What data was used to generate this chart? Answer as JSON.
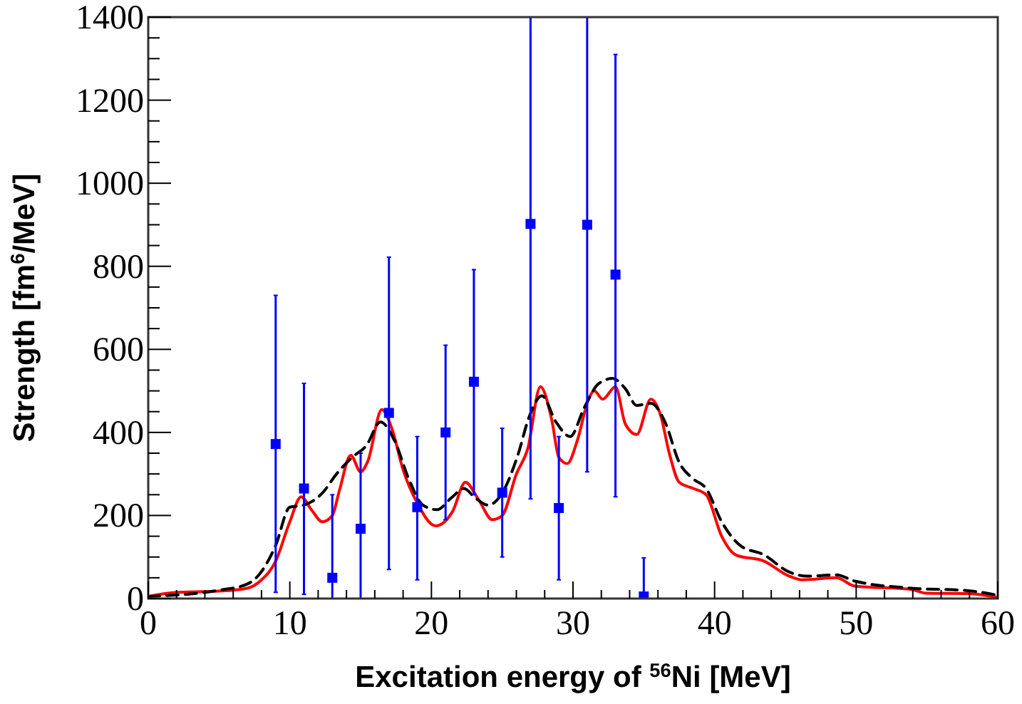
{
  "chart_data": {
    "type": "line",
    "xlabel": "Excitation energy of $^{56}$Ni [MeV]",
    "ylabel": "Strength [fm$^{6}$/MeV]",
    "xlim": [
      0,
      60
    ],
    "ylim": [
      0,
      1400
    ],
    "xticks": [
      0,
      {
        "value": 2,
        "label": null
      },
      {
        "value": 4,
        "label": null
      },
      {
        "value": 6,
        "label": null
      },
      {
        "value": 8,
        "label": null
      },
      10,
      {
        "value": 12,
        "label": null
      },
      {
        "value": 14,
        "label": null
      },
      {
        "value": 16,
        "label": null
      },
      {
        "value": 18,
        "label": null
      },
      20,
      {
        "value": 22,
        "label": null
      },
      {
        "value": 24,
        "label": null
      },
      {
        "value": 26,
        "label": null
      },
      {
        "value": 28,
        "label": null
      },
      30,
      {
        "value": 32,
        "label": null
      },
      {
        "value": 34,
        "label": null
      },
      {
        "value": 36,
        "label": null
      },
      {
        "value": 38,
        "label": null
      },
      40,
      {
        "value": 42,
        "label": null
      },
      {
        "value": 44,
        "label": null
      },
      {
        "value": 46,
        "label": null
      },
      {
        "value": 48,
        "label": null
      },
      50,
      {
        "value": 52,
        "label": null
      },
      {
        "value": 54,
        "label": null
      },
      {
        "value": 56,
        "label": null
      },
      {
        "value": 58,
        "label": null
      },
      60
    ],
    "yticks": [
      0,
      {
        "value": 50,
        "label": null
      },
      {
        "value": 100,
        "label": null
      },
      {
        "value": 150,
        "label": null
      },
      200,
      {
        "value": 250,
        "label": null
      },
      {
        "value": 300,
        "label": null
      },
      {
        "value": 350,
        "label": null
      },
      400,
      {
        "value": 450,
        "label": null
      },
      {
        "value": 500,
        "label": null
      },
      {
        "value": 550,
        "label": null
      },
      600,
      {
        "value": 650,
        "label": null
      },
      {
        "value": 700,
        "label": null
      },
      {
        "value": 750,
        "label": null
      },
      800,
      {
        "value": 850,
        "label": null
      },
      {
        "value": 900,
        "label": null
      },
      {
        "value": 950,
        "label": null
      },
      1000,
      {
        "value": 1050,
        "label": null
      },
      {
        "value": 1100,
        "label": null
      },
      {
        "value": 1150,
        "label": null
      },
      1200,
      {
        "value": 1250,
        "label": null
      },
      {
        "value": 1300,
        "label": null
      },
      {
        "value": 1350,
        "label": null
      },
      1400
    ],
    "grid": false,
    "series": [
      {
        "color": "#ff0000",
        "line_style": "solid",
        "marker": "none",
        "x": [
          0,
          2,
          5,
          7,
          8,
          9,
          10,
          10.8,
          11.5,
          12.3,
          13,
          13.5,
          14.3,
          15,
          15.5,
          16.5,
          17.2,
          18,
          19,
          20.3,
          21.5,
          22.4,
          23.3,
          24.3,
          25,
          26,
          26.8,
          27.7,
          28.5,
          29,
          29.6,
          30.3,
          31.1,
          31.5,
          32.1,
          33,
          33.7,
          34.5,
          35.5,
          36.2,
          36.8,
          37.5,
          38.5,
          39.4,
          40.5,
          41.5,
          43.5,
          45.2,
          46.2,
          48.6,
          49.9,
          53.9,
          54.9,
          57.9,
          60
        ],
        "values": [
          5,
          15,
          18,
          25,
          45,
          90,
          185,
          245,
          215,
          185,
          200,
          260,
          345,
          305,
          330,
          455,
          410,
          310,
          230,
          175,
          210,
          280,
          240,
          190,
          200,
          300,
          360,
          510,
          430,
          340,
          325,
          380,
          480,
          500,
          480,
          510,
          420,
          395,
          480,
          440,
          350,
          280,
          265,
          250,
          150,
          105,
          90,
          55,
          45,
          50,
          30,
          22,
          13,
          12,
          3
        ]
      },
      {
        "color": "#000000",
        "line_style": "dashed",
        "marker": "none",
        "x": [
          0,
          5,
          7,
          8,
          9,
          10,
          11,
          12.3,
          13.3,
          14.4,
          15.4,
          16.4,
          17.4,
          18.4,
          19.4,
          20.4,
          21.4,
          22.3,
          23.1,
          24,
          25,
          26.1,
          26.9,
          27.8,
          28.8,
          29.8,
          30.8,
          31.8,
          32.8,
          33.7,
          34.5,
          35.5,
          36.5,
          37.5,
          38.5,
          39.4,
          40.5,
          41.8,
          43.5,
          45.2,
          46.5,
          48.6,
          49.9,
          53.9,
          57.9,
          60
        ],
        "values": [
          5,
          20,
          35,
          65,
          128,
          220,
          225,
          254,
          300,
          340,
          368,
          425,
          380,
          288,
          225,
          214,
          242,
          265,
          242,
          225,
          254,
          345,
          437,
          488,
          425,
          390,
          460,
          517,
          530,
          505,
          465,
          470,
          425,
          328,
          288,
          265,
          185,
          128,
          105,
          65,
          54,
          57,
          42,
          25,
          19,
          8
        ]
      },
      {
        "type": "scatter",
        "color": "#0000ff",
        "marker": "square",
        "x": [
          9,
          11,
          13,
          15,
          17,
          19,
          21,
          23,
          25,
          27,
          29,
          31,
          33,
          35
        ],
        "values": [
          372,
          265,
          50,
          168,
          447,
          220,
          400,
          522,
          255,
          902,
          218,
          900,
          780,
          5
        ],
        "errors": [
          [
            15,
            730
          ],
          [
            10,
            518
          ],
          [
            0,
            250
          ],
          [
            0,
            350
          ],
          [
            70,
            822
          ],
          [
            45,
            390
          ],
          [
            190,
            610
          ],
          [
            250,
            792
          ],
          [
            100,
            410
          ],
          [
            240,
            1400
          ],
          [
            45,
            390
          ],
          [
            305,
            1400
          ],
          [
            245,
            1310
          ],
          [
            0,
            98
          ]
        ]
      }
    ]
  }
}
